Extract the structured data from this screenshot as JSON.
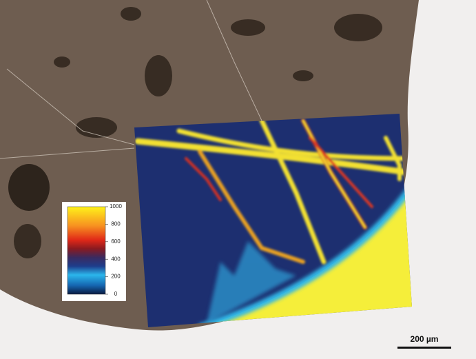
{
  "colorbar": {
    "ticks": [
      0,
      200,
      400,
      600,
      800,
      1000
    ]
  },
  "scale_bar": {
    "label": "200 µm"
  }
}
